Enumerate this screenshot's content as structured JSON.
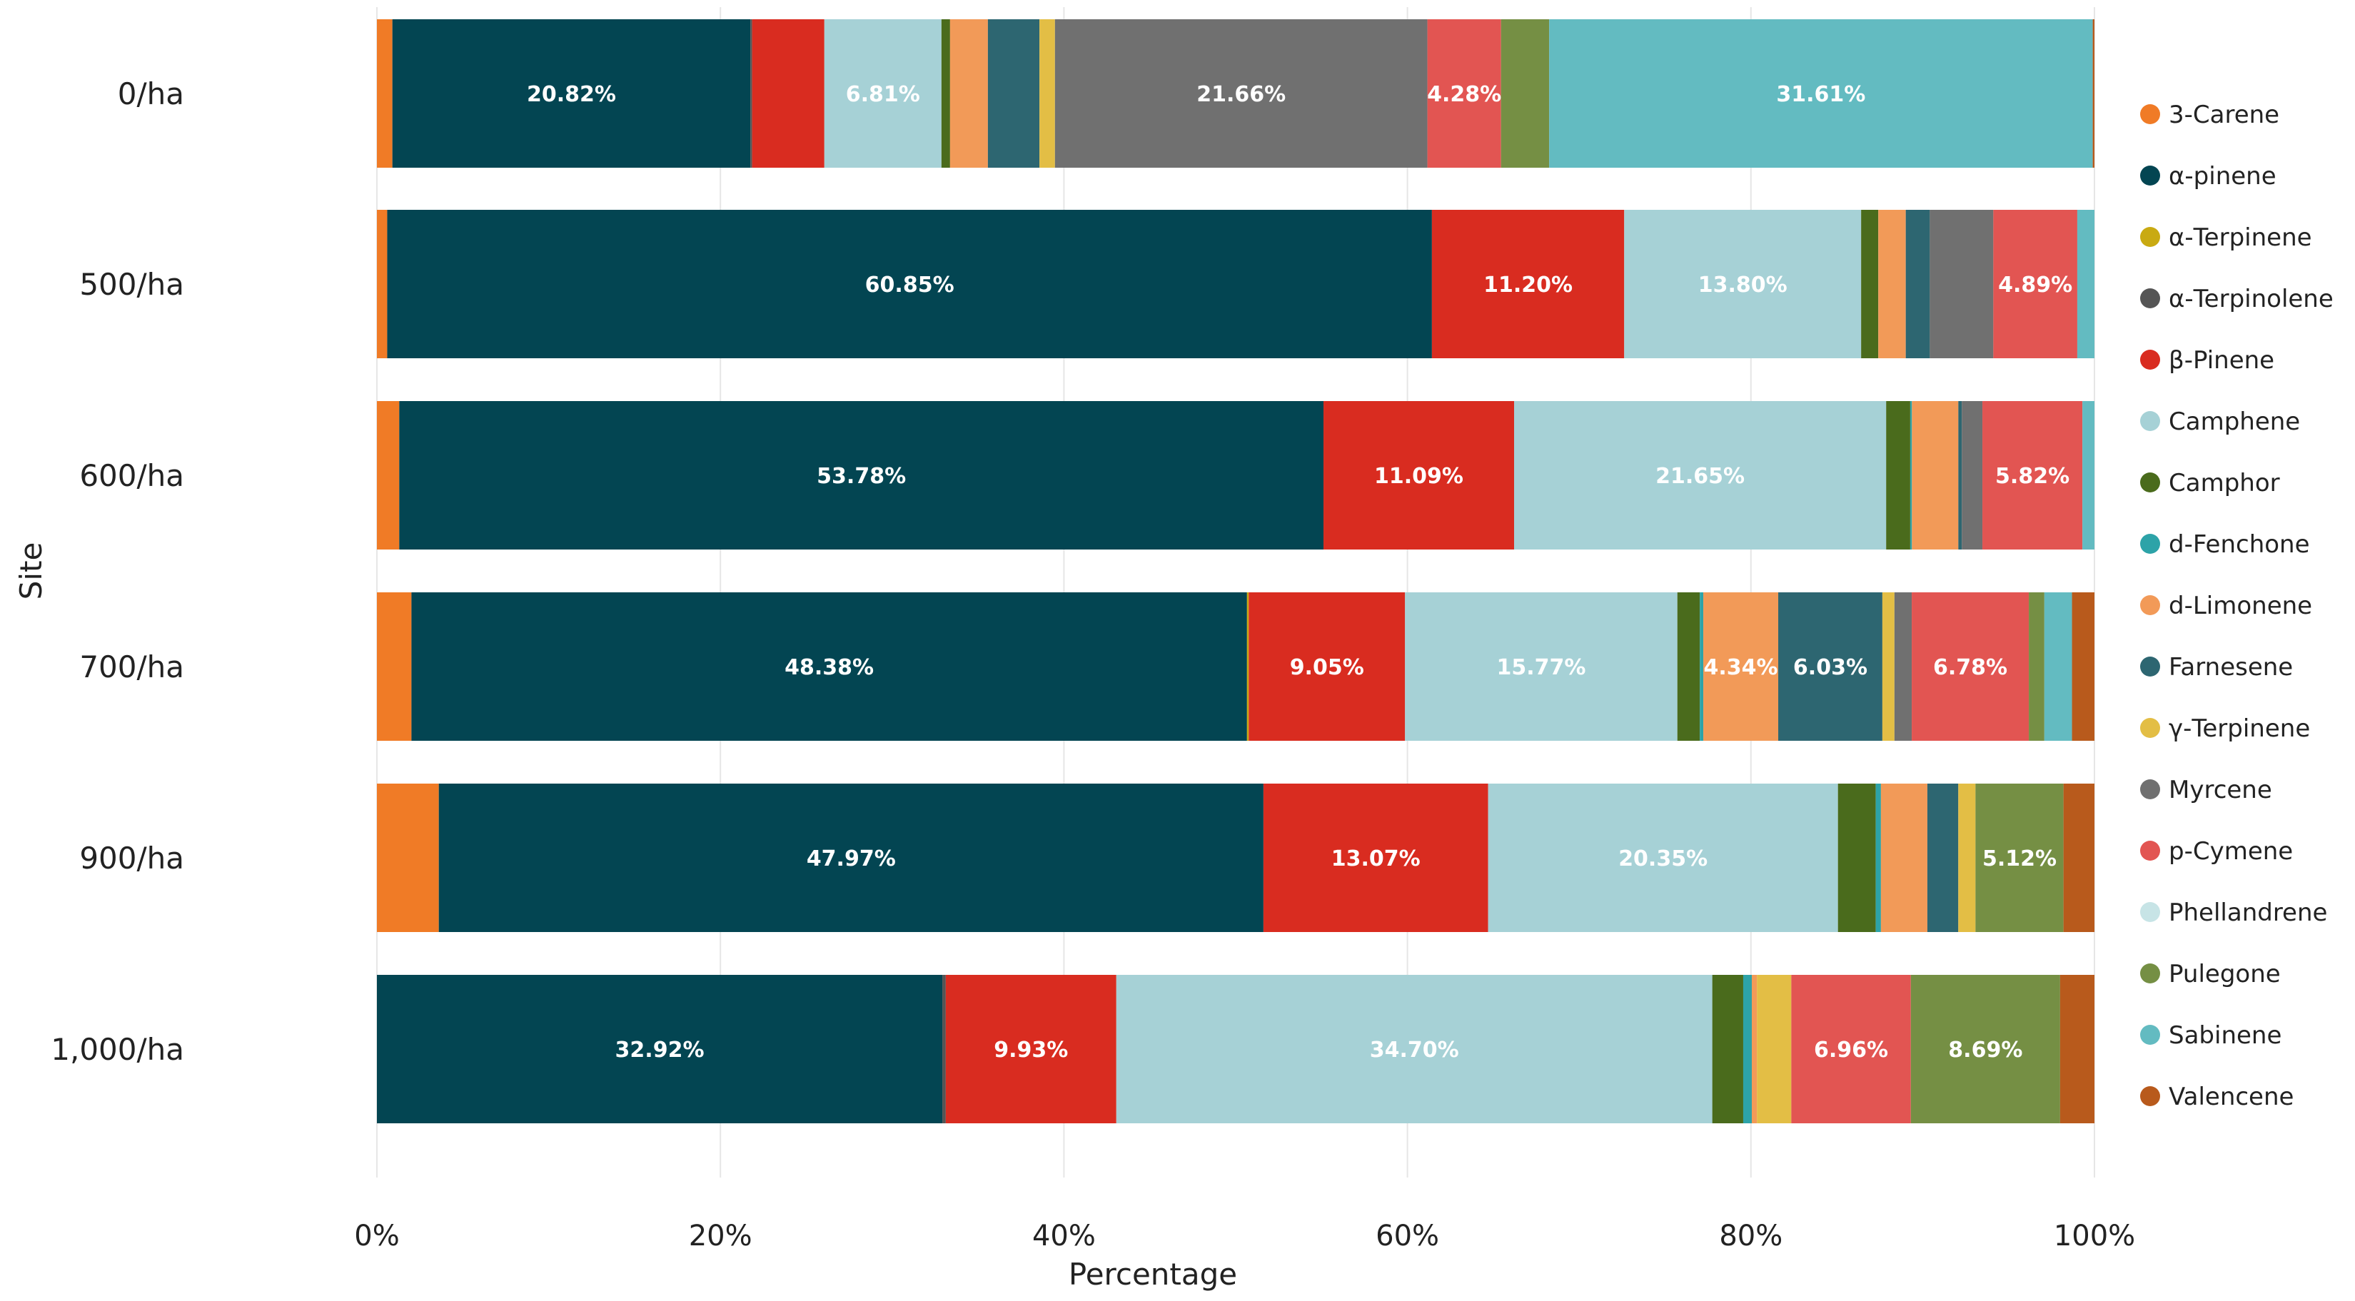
{
  "chart_data": {
    "type": "bar",
    "orientation": "horizontal",
    "stacked": "percent",
    "title": "",
    "xlabel": "Percentage",
    "ylabel": "Site",
    "xlim": [
      0,
      100
    ],
    "x_ticks": [
      "0%",
      "20%",
      "40%",
      "60%",
      "80%",
      "100%"
    ],
    "x_tick_values": [
      0,
      20,
      40,
      60,
      80,
      100
    ],
    "grid": true,
    "legend_position": "right",
    "categories": [
      "0/ha",
      "500/ha",
      "600/ha",
      "700/ha",
      "900/ha",
      "1,000/ha"
    ],
    "series": [
      {
        "name": "3-Carene",
        "color": "#F07B26",
        "values": [
          0.9,
          0.6,
          1.3,
          2.0,
          3.6,
          0.0
        ]
      },
      {
        "name": "α-pinene",
        "color": "#034552",
        "values": [
          20.82,
          60.85,
          53.78,
          48.38,
          47.97,
          32.92
        ]
      },
      {
        "name": "α-Terpinene",
        "color": "#C9AA12",
        "values": [
          0.0,
          0.0,
          0.0,
          0.1,
          0.0,
          0.0
        ]
      },
      {
        "name": "α-Terpinolene",
        "color": "#555555",
        "values": [
          0.1,
          0.0,
          0.0,
          0.0,
          0.0,
          0.2
        ]
      },
      {
        "name": "β-Pinene",
        "color": "#D92C20",
        "values": [
          4.2,
          11.2,
          11.09,
          9.05,
          13.07,
          9.93
        ]
      },
      {
        "name": "Camphene",
        "color": "#A6D1D6",
        "values": [
          6.81,
          13.8,
          21.65,
          15.77,
          20.35,
          34.7
        ]
      },
      {
        "name": "Camphor",
        "color": "#4A6B1C",
        "values": [
          0.5,
          1.0,
          1.4,
          1.3,
          2.2,
          1.8
        ]
      },
      {
        "name": "d-Fenchone",
        "color": "#2DA3A8",
        "values": [
          0.0,
          0.0,
          0.1,
          0.2,
          0.3,
          0.5
        ]
      },
      {
        "name": "d-Limonene",
        "color": "#F29A58",
        "values": [
          2.2,
          1.6,
          2.7,
          4.34,
          2.7,
          0.3
        ]
      },
      {
        "name": "Farnesene",
        "color": "#2D6671",
        "values": [
          3.0,
          1.4,
          0.2,
          6.03,
          1.8,
          0.0
        ]
      },
      {
        "name": "γ-Terpinene",
        "color": "#E3BE45",
        "values": [
          0.9,
          0.0,
          0.0,
          0.7,
          1.0,
          2.0
        ]
      },
      {
        "name": "Myrcene",
        "color": "#707070",
        "values": [
          21.66,
          3.7,
          1.2,
          1.0,
          0.0,
          0.0
        ]
      },
      {
        "name": "p-Cymene",
        "color": "#E25552",
        "values": [
          4.28,
          4.89,
          5.82,
          6.78,
          0.0,
          6.96
        ]
      },
      {
        "name": "Phellandrene",
        "color": "#C7E4E6",
        "values": [
          0.0,
          0.0,
          0.0,
          0.0,
          0.0,
          0.0
        ]
      },
      {
        "name": "Pulegone",
        "color": "#758F44",
        "values": [
          2.8,
          0.0,
          0.0,
          0.9,
          5.12,
          8.69
        ]
      },
      {
        "name": "Sabinene",
        "color": "#63BBC1",
        "values": [
          31.61,
          1.0,
          0.7,
          1.6,
          0.0,
          0.0
        ]
      },
      {
        "name": "Valencene",
        "color": "#B85A1C",
        "values": [
          0.1,
          0.0,
          0.0,
          1.3,
          1.8,
          2.0
        ]
      }
    ],
    "data_labels": [
      {
        "category": "0/ha",
        "series": "α-pinene",
        "text": "20.82%"
      },
      {
        "category": "0/ha",
        "series": "Camphene",
        "text": "6.81%"
      },
      {
        "category": "0/ha",
        "series": "Myrcene",
        "text": "21.66%"
      },
      {
        "category": "0/ha",
        "series": "p-Cymene",
        "text": "4.28%"
      },
      {
        "category": "0/ha",
        "series": "Sabinene",
        "text": "31.61%"
      },
      {
        "category": "500/ha",
        "series": "α-pinene",
        "text": "60.85%"
      },
      {
        "category": "500/ha",
        "series": "β-Pinene",
        "text": "11.20%"
      },
      {
        "category": "500/ha",
        "series": "Camphene",
        "text": "13.80%"
      },
      {
        "category": "500/ha",
        "series": "p-Cymene",
        "text": "4.89%"
      },
      {
        "category": "600/ha",
        "series": "α-pinene",
        "text": "53.78%"
      },
      {
        "category": "600/ha",
        "series": "β-Pinene",
        "text": "11.09%"
      },
      {
        "category": "600/ha",
        "series": "Camphene",
        "text": "21.65%"
      },
      {
        "category": "600/ha",
        "series": "p-Cymene",
        "text": "5.82%"
      },
      {
        "category": "700/ha",
        "series": "α-pinene",
        "text": "48.38%"
      },
      {
        "category": "700/ha",
        "series": "β-Pinene",
        "text": "9.05%"
      },
      {
        "category": "700/ha",
        "series": "Camphene",
        "text": "15.77%"
      },
      {
        "category": "700/ha",
        "series": "d-Limonene",
        "text": "4.34%"
      },
      {
        "category": "700/ha",
        "series": "Farnesene",
        "text": "6.03%"
      },
      {
        "category": "700/ha",
        "series": "p-Cymene",
        "text": "6.78%"
      },
      {
        "category": "900/ha",
        "series": "α-pinene",
        "text": "47.97%"
      },
      {
        "category": "900/ha",
        "series": "β-Pinene",
        "text": "13.07%"
      },
      {
        "category": "900/ha",
        "series": "Camphene",
        "text": "20.35%"
      },
      {
        "category": "900/ha",
        "series": "Pulegone",
        "text": "5.12%"
      },
      {
        "category": "1,000/ha",
        "series": "α-pinene",
        "text": "32.92%"
      },
      {
        "category": "1,000/ha",
        "series": "β-Pinene",
        "text": "9.93%"
      },
      {
        "category": "1,000/ha",
        "series": "Camphene",
        "text": "34.70%"
      },
      {
        "category": "1,000/ha",
        "series": "p-Cymene",
        "text": "6.96%"
      },
      {
        "category": "1,000/ha",
        "series": "Pulegone",
        "text": "8.69%"
      }
    ]
  }
}
